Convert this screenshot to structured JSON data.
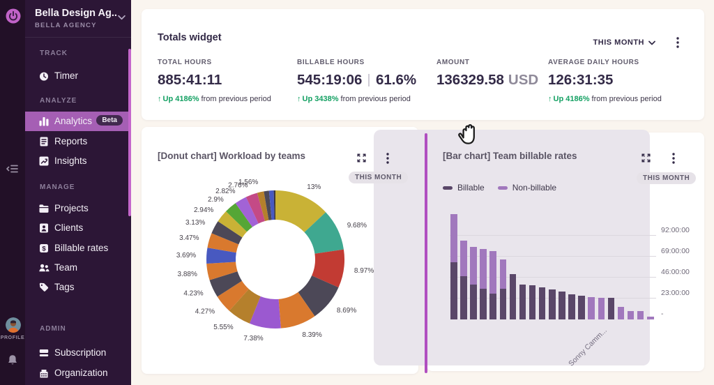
{
  "colors": {
    "accent_purple": "#a55fb4",
    "sidebar_bg": "#2c1636",
    "rail_bg": "#221027",
    "page_bg": "#faf5ef",
    "drag_ghost": "#e9e5ec",
    "insertion_line": "#b04fc0",
    "positive_green": "#13a062",
    "billable": "#5a4769",
    "non_billable": "#a178bd",
    "badge_bg": "#e6e2e8",
    "scrollbar_thumb": "#c466cb"
  },
  "sidebar": {
    "workspace_name": "Bella Design Ag...",
    "workspace_label": "BELLA AGENCY",
    "profile_label": "PROFILE",
    "sections": {
      "track": "TRACK",
      "analyze": "ANALYZE",
      "manage": "MANAGE",
      "admin": "ADMIN"
    },
    "items": {
      "timer": "Timer",
      "analytics": "Analytics",
      "analytics_badge": "Beta",
      "reports": "Reports",
      "insights": "Insights",
      "projects": "Projects",
      "clients": "Clients",
      "billable_rates": "Billable rates",
      "team": "Team",
      "tags": "Tags",
      "subscription": "Subscription",
      "organization": "Organization"
    }
  },
  "totals_widget": {
    "title": "Totals widget",
    "period_selector": "THIS MONTH",
    "stats": [
      {
        "label": "TOTAL HOURS",
        "value": "885:41:11",
        "change": "Up 4186%",
        "change_suffix": "from previous period"
      },
      {
        "label": "BILLABLE HOURS",
        "value": "545:19:06",
        "value_secondary": "61.6%",
        "change": "Up 3438%",
        "change_suffix": "from previous period"
      },
      {
        "label": "AMOUNT",
        "value": "136329.58",
        "value_suffix": "USD"
      },
      {
        "label": "AVERAGE DAILY HOURS",
        "value": "126:31:35",
        "change": "Up 4186%",
        "change_suffix": "from previous period"
      }
    ]
  },
  "donut_card": {
    "title": "[Donut chart] Workload by teams",
    "period_badge": "THIS MONTH"
  },
  "bar_card": {
    "title": "[Bar chart] Team billable rates",
    "period_badge": "THIS MONTH"
  },
  "chart_data": [
    {
      "type": "pie",
      "variant": "donut",
      "title": "[Donut chart] Workload by teams",
      "period": "THIS MONTH",
      "slices": [
        {
          "label": "13%",
          "value": 13,
          "color": "#c9b236"
        },
        {
          "label": "9.68%",
          "value": 9.68,
          "color": "#3fa890"
        },
        {
          "label": "8.97%",
          "value": 8.97,
          "color": "#c23b33"
        },
        {
          "label": "8.69%",
          "value": 8.69,
          "color": "#4c4857"
        },
        {
          "label": "8.39%",
          "value": 8.39,
          "color": "#d9792e"
        },
        {
          "label": "7.38%",
          "value": 7.38,
          "color": "#9b59d0"
        },
        {
          "label": "5.55%",
          "value": 5.55,
          "color": "#b5802c"
        },
        {
          "label": "4.27%",
          "value": 4.27,
          "color": "#d9792e"
        },
        {
          "label": "4.23%",
          "value": 4.23,
          "color": "#4c4857"
        },
        {
          "label": "3.88%",
          "value": 3.88,
          "color": "#d9792e"
        },
        {
          "label": "3.69%",
          "value": 3.69,
          "color": "#4859c0"
        },
        {
          "label": "3.47%",
          "value": 3.47,
          "color": "#d9792e"
        },
        {
          "label": "3.13%",
          "value": 3.13,
          "color": "#4c4857"
        },
        {
          "label": "2.94%",
          "value": 2.94,
          "color": "#c9b236"
        },
        {
          "label": "2.9%",
          "value": 2.9,
          "color": "#55a636"
        },
        {
          "label": "2.82%",
          "value": 2.82,
          "color": "#a263d6"
        },
        {
          "label": "2.76%",
          "value": 2.76,
          "color": "#c44a86"
        },
        {
          "label": "1.56%",
          "value": 1.56,
          "color": "#b5802c"
        },
        {
          "label": "",
          "value": 1.2,
          "color": "#4c4857"
        },
        {
          "label": "",
          "value": 1.1,
          "color": "#4859c0"
        },
        {
          "label": "",
          "value": 0.39,
          "color": "#3a3642"
        }
      ]
    },
    {
      "type": "bar",
      "stacked": true,
      "title": "[Bar chart] Team billable rates",
      "period": "THIS MONTH",
      "legend": [
        "Billable",
        "Non-billable"
      ],
      "y_ticks": [
        "92:00:00",
        "69:00:00",
        "46:00:00",
        "23:00:00",
        "-"
      ],
      "y_tick_hours": [
        92,
        69,
        46,
        23,
        0
      ],
      "x_label_visible": "Sonny Camm...",
      "x_label_visible_index": 15,
      "series": [
        {
          "name": "Billable",
          "color": "#5a4769",
          "values_hours": [
            63,
            47.5,
            38.5,
            33.5,
            28.5,
            34,
            49.5,
            38.5,
            37.5,
            35.5,
            33,
            30.5,
            28,
            26,
            0,
            0,
            23.5,
            0,
            0,
            0,
            0
          ]
        },
        {
          "name": "Non-billable",
          "color": "#a178bd",
          "values_hours": [
            52.5,
            39,
            41.5,
            44,
            46.5,
            32,
            0,
            0,
            0,
            0,
            0,
            0,
            0,
            0,
            24.5,
            24,
            0,
            14,
            9.5,
            9.5,
            3
          ]
        }
      ]
    }
  ]
}
